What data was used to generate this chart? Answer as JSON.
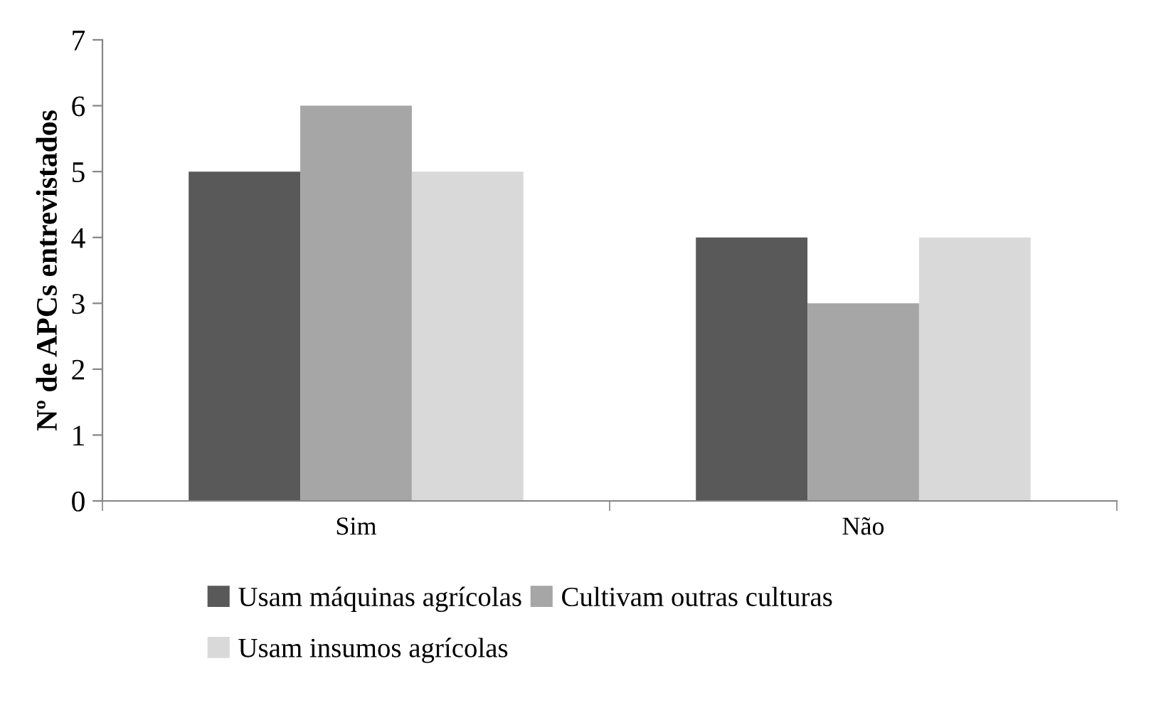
{
  "chart_data": {
    "type": "bar",
    "ylabel": "Nº de APCs entrevistados",
    "categories": [
      "Sim",
      "Não"
    ],
    "series": [
      {
        "name": "Usam máquinas agrícolas",
        "color": "#595959",
        "values": [
          5,
          4
        ]
      },
      {
        "name": "Cultivam outras culturas",
        "color": "#a6a6a6",
        "values": [
          6,
          3
        ]
      },
      {
        "name": "Usam insumos agrícolas",
        "color": "#d9d9d9",
        "values": [
          5,
          4
        ]
      }
    ],
    "ylim": [
      0,
      7
    ],
    "yticks": [
      0,
      1,
      2,
      3,
      4,
      5,
      6,
      7
    ],
    "grid": false,
    "legend": "bottom"
  }
}
